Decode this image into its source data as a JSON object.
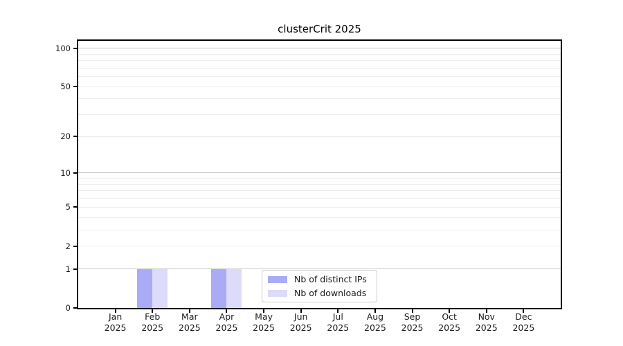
{
  "chart_data": {
    "type": "bar",
    "title": "clusterCrit 2025",
    "x_categories": [
      "Jan",
      "Feb",
      "Mar",
      "Apr",
      "May",
      "Jun",
      "Jul",
      "Aug",
      "Sep",
      "Oct",
      "Nov",
      "Dec"
    ],
    "x_sublabel": "2025",
    "series": [
      {
        "name": "Nb of distinct IPs",
        "color": "#aaabf5",
        "values": [
          0,
          1,
          0,
          1,
          0,
          0,
          0,
          0,
          0,
          0,
          0,
          0
        ]
      },
      {
        "name": "Nb of downloads",
        "color": "#dcdbf9",
        "values": [
          0,
          1,
          0,
          1,
          0,
          0,
          0,
          0,
          0,
          0,
          0,
          0
        ]
      }
    ],
    "y_axis": {
      "scale": "log1p",
      "ticks": [
        0,
        1,
        2,
        5,
        10,
        20,
        50,
        100
      ],
      "major_gridlines": [
        1,
        10,
        100
      ],
      "minor_gridlines": [
        2,
        3,
        4,
        5,
        6,
        7,
        8,
        9,
        20,
        30,
        40,
        50,
        60,
        70,
        80,
        90
      ],
      "ylim": [
        0,
        114
      ]
    },
    "legend": {
      "position": "bottom-center"
    },
    "grid": "horizontal",
    "colors": {
      "major_grid": "#c9c9c9",
      "minor_grid": "#ececec",
      "axis": "#000000",
      "text": "#1a1a1a"
    }
  }
}
